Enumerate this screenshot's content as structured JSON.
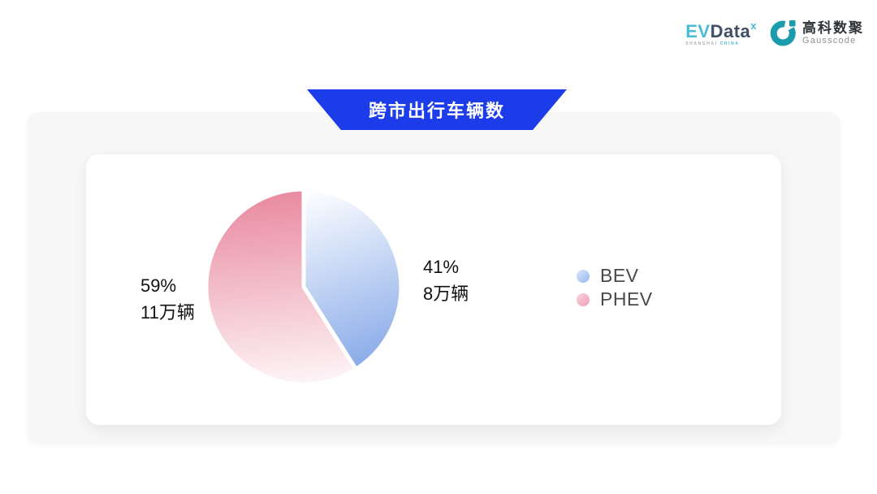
{
  "brand": {
    "evdata": {
      "prefix": "EV",
      "name": "Data",
      "superscript": "x",
      "tagline_left": "SHANGHAI",
      "tagline_right": "CHINA",
      "teal": "#49bcd3",
      "dark": "#414f66"
    },
    "gausscode": {
      "cn": "高科数聚",
      "en": "Gausscode",
      "icon_color": "#1a9cad"
    }
  },
  "banner": {
    "title": "跨市出行车辆数",
    "bg": "#1c3be9",
    "text_color": "#ffffff"
  },
  "chart_data": {
    "type": "pie",
    "title": "跨市出行车辆数",
    "unit": "万辆",
    "start_angle_deg": 0,
    "direction": "clockwise",
    "legend_position": "right",
    "slices": [
      {
        "name": "BEV",
        "percent": 41,
        "value": 8,
        "label_line1": "41%",
        "label_line2": "8万辆",
        "gradient_from": "#fdfeff",
        "gradient_to": "#7ca1e6"
      },
      {
        "name": "PHEV",
        "percent": 59,
        "value": 11,
        "label_line1": "59%",
        "label_line2": "11万辆",
        "gradient_from": "#e9899f",
        "gradient_to": "#fdf5f7"
      }
    ]
  },
  "legend": {
    "items": [
      {
        "label": "BEV",
        "marker_from": "#d8e6fa",
        "marker_to": "#96b7ef"
      },
      {
        "label": "PHEV",
        "marker_from": "#f8d3dd",
        "marker_to": "#ee9fb4"
      }
    ]
  }
}
